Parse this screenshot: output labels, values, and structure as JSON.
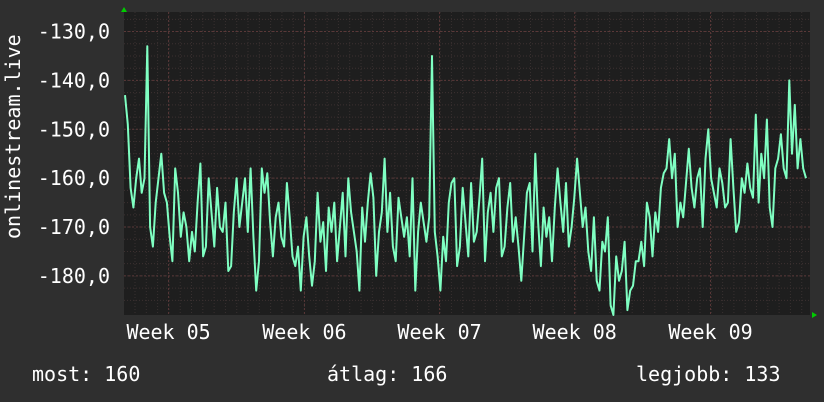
{
  "chart_data": {
    "type": "line",
    "title": "",
    "xlabel": "",
    "ylabel": "onlinestream.live",
    "ylim": [
      -188,
      -126
    ],
    "yticks": [
      -130,
      -140,
      -150,
      -160,
      -170,
      -180
    ],
    "ytick_labels": [
      "-130,0",
      "-140,0",
      "-150,0",
      "-160,0",
      "-170,0",
      "-180,0"
    ],
    "xticks": [
      {
        "label": "Week 05",
        "t": 0.065
      },
      {
        "label": "Week 06",
        "t": 0.263
      },
      {
        "label": "Week 07",
        "t": 0.46
      },
      {
        "label": "Week 08",
        "t": 0.657
      },
      {
        "label": "Week 09",
        "t": 0.855
      }
    ],
    "grid": true,
    "colors": {
      "background": "#2f2f2f",
      "plot": "#1e1e1e",
      "grid": "#5a3838",
      "line": "#7fffc2",
      "arrow": "#00cc00"
    },
    "series": [
      {
        "values": [
          -143,
          -149,
          -162,
          -166,
          -160,
          -156,
          -163,
          -160,
          -133,
          -170,
          -174,
          -165,
          -160,
          -155,
          -163,
          -165,
          -172,
          -177,
          -158,
          -163,
          -172,
          -167,
          -170,
          -177,
          -171,
          -175,
          -165,
          -157,
          -176,
          -174,
          -160,
          -167,
          -174,
          -162,
          -170,
          -171,
          -165,
          -179,
          -178,
          -167,
          -160,
          -170,
          -165,
          -160,
          -171,
          -158,
          -172,
          -183,
          -177,
          -158,
          -163,
          -159,
          -169,
          -176,
          -168,
          -165,
          -172,
          -174,
          -161,
          -168,
          -176,
          -178,
          -174,
          -183,
          -172,
          -168,
          -176,
          -182,
          -177,
          -163,
          -173,
          -169,
          -179,
          -166,
          -171,
          -165,
          -177,
          -170,
          -163,
          -176,
          -160,
          -167,
          -171,
          -175,
          -183,
          -166,
          -173,
          -165,
          -159,
          -164,
          -180,
          -171,
          -167,
          -156,
          -171,
          -163,
          -174,
          -177,
          -164,
          -168,
          -172,
          -168,
          -176,
          -160,
          -183,
          -171,
          -165,
          -169,
          -173,
          -168,
          -135,
          -171,
          -176,
          -183,
          -172,
          -177,
          -165,
          -161,
          -160,
          -178,
          -174,
          -162,
          -169,
          -176,
          -161,
          -173,
          -171,
          -164,
          -156,
          -177,
          -167,
          -163,
          -171,
          -162,
          -160,
          -176,
          -174,
          -166,
          -161,
          -173,
          -168,
          -174,
          -181,
          -172,
          -163,
          -161,
          -175,
          -155,
          -169,
          -178,
          -166,
          -172,
          -168,
          -177,
          -166,
          -158,
          -165,
          -171,
          -161,
          -174,
          -170,
          -164,
          -156,
          -163,
          -170,
          -166,
          -175,
          -179,
          -168,
          -181,
          -183,
          -173,
          -175,
          -168,
          -186,
          -188,
          -176,
          -181,
          -179,
          -173,
          -187,
          -183,
          -182,
          -177,
          -177,
          -173,
          -178,
          -165,
          -168,
          -176,
          -167,
          -171,
          -162,
          -159,
          -158,
          -152,
          -160,
          -155,
          -170,
          -165,
          -168,
          -161,
          -154,
          -162,
          -166,
          -160,
          -158,
          -170,
          -156,
          -150,
          -160,
          -163,
          -166,
          -158,
          -161,
          -166,
          -165,
          -152,
          -162,
          -171,
          -169,
          -160,
          -163,
          -157,
          -162,
          -164,
          -147,
          -165,
          -155,
          -160,
          -148,
          -166,
          -170,
          -158,
          -156,
          -151,
          -158,
          -160,
          -140,
          -155,
          -145,
          -158,
          -152,
          -158,
          -160
        ],
        "color": "#7fffc2"
      }
    ]
  },
  "stats": {
    "most": "most: 160",
    "avg": "átlag: 166",
    "best": "legjobb: 133"
  }
}
